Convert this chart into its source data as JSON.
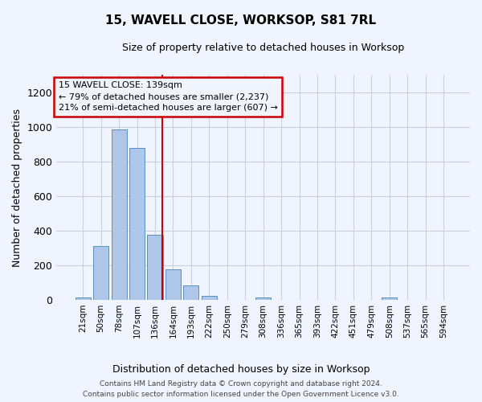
{
  "title": "15, WAVELL CLOSE, WORKSOP, S81 7RL",
  "subtitle": "Size of property relative to detached houses in Worksop",
  "xlabel": "Distribution of detached houses by size in Worksop",
  "ylabel": "Number of detached properties",
  "bins": [
    "21sqm",
    "50sqm",
    "78sqm",
    "107sqm",
    "136sqm",
    "164sqm",
    "193sqm",
    "222sqm",
    "250sqm",
    "279sqm",
    "308sqm",
    "336sqm",
    "365sqm",
    "393sqm",
    "422sqm",
    "451sqm",
    "479sqm",
    "508sqm",
    "537sqm",
    "565sqm",
    "594sqm"
  ],
  "values": [
    15,
    310,
    985,
    880,
    375,
    175,
    85,
    25,
    0,
    0,
    15,
    0,
    0,
    0,
    0,
    0,
    0,
    15,
    0,
    0,
    0
  ],
  "bar_color": "#aec6e8",
  "bar_edge_color": "#5a8fc0",
  "vline_x_index": 4,
  "vline_color": "#cc0000",
  "annotation_text": "15 WAVELL CLOSE: 139sqm\n← 79% of detached houses are smaller (2,237)\n21% of semi-detached houses are larger (607) →",
  "ylim": [
    0,
    1300
  ],
  "yticks": [
    0,
    200,
    400,
    600,
    800,
    1000,
    1200
  ],
  "footer_text": "Contains HM Land Registry data © Crown copyright and database right 2024.\nContains public sector information licensed under the Open Government Licence v3.0.",
  "bg_color": "#f0f4ff",
  "grid_color": "#c8d0e0"
}
